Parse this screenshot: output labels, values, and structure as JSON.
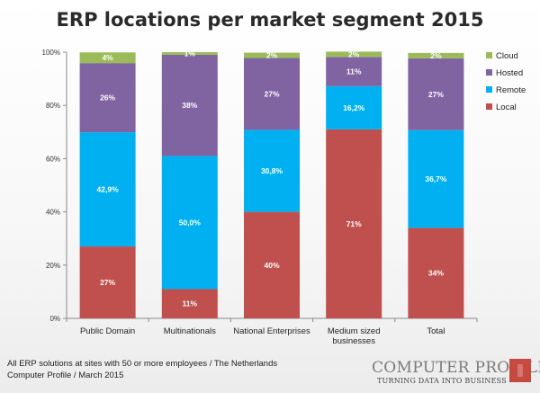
{
  "chart_data": {
    "type": "bar",
    "stacked": true,
    "title": "ERP locations per market segment 2015",
    "categories": [
      "Public Domain",
      "Multinationals",
      "National Enterprises",
      "Medium sized businesses",
      "Total"
    ],
    "category_lines": [
      [
        "Public Domain"
      ],
      [
        "Multinationals"
      ],
      [
        "National Enterprises"
      ],
      [
        "Medium sized",
        "businesses"
      ],
      [
        "Total"
      ]
    ],
    "series": [
      {
        "name": "Local",
        "color": "#c0504d",
        "values": [
          27,
          11,
          40,
          71,
          34
        ],
        "labels": [
          "27%",
          "11%",
          "40%",
          "71%",
          "34%"
        ]
      },
      {
        "name": "Remote",
        "color": "#00b0f0",
        "values": [
          42.9,
          50.0,
          30.8,
          16.2,
          36.7
        ],
        "labels": [
          "42,9%",
          "50,0%",
          "30,8%",
          "16,2%",
          "36,7%"
        ]
      },
      {
        "name": "Hosted",
        "color": "#8064a2",
        "values": [
          26,
          38,
          27,
          11,
          27
        ],
        "labels": [
          "26%",
          "38%",
          "27%",
          "11%",
          "27%"
        ]
      },
      {
        "name": "Cloud",
        "color": "#9bbb59",
        "values": [
          4,
          1,
          2,
          2,
          2
        ],
        "labels": [
          "4%",
          "1%",
          "2%",
          "2%",
          "2%"
        ]
      }
    ],
    "ylim": [
      0,
      100
    ],
    "yticks": [
      0,
      20,
      40,
      60,
      80,
      100
    ],
    "ytick_labels": [
      "0%",
      "20%",
      "40%",
      "60%",
      "80%",
      "100%"
    ],
    "legend_order": [
      "Cloud",
      "Hosted",
      "Remote",
      "Local"
    ],
    "legend_position": "right",
    "grid": false
  },
  "footer": {
    "line1": "All ERP solutions at sites with 50 or more employees  / The Netherlands",
    "line2": "Computer Profile / March 2015"
  },
  "brand": {
    "name": "COMPUTER PROFILE",
    "tagline": "TURNING DATA INTO BUSINESS"
  }
}
